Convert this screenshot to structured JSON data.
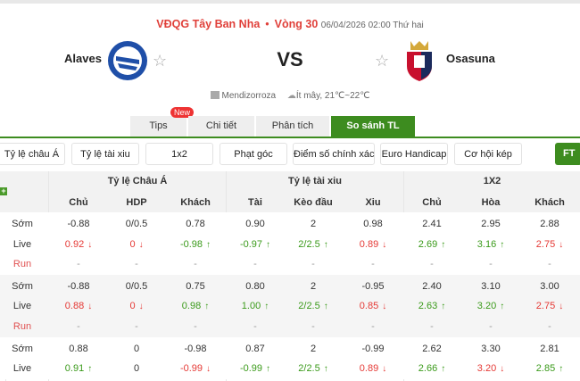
{
  "match": {
    "league": "VĐQG Tây Ban Nha",
    "round": "Vòng 30",
    "datetime": "06/04/2026 02:00 Thứ hai",
    "home": "Alaves",
    "away": "Osasuna",
    "vs": "VS",
    "venue": "Mendizorroza",
    "weather": "Ít mây, 21℃~22℃"
  },
  "tabs": [
    {
      "label": "Tips",
      "badge": "New"
    },
    {
      "label": "Chi tiết"
    },
    {
      "label": "Phân tích"
    },
    {
      "label": "So sánh TL",
      "active": true
    }
  ],
  "filters": [
    "Tỷ lệ châu Á",
    "Tỷ lệ tài xiu",
    "1x2",
    "Phạt góc",
    "Điểm số chính xác",
    "Euro Handicap",
    "Cơ hội kép"
  ],
  "ft_label": "FT",
  "table": {
    "groups": [
      "Tỷ lệ Châu Á",
      "Tỷ lệ tài xiu",
      "1X2"
    ],
    "columns": [
      "Chủ",
      "HDP",
      "Khách",
      "Tài",
      "Kèo đầu",
      "Xiu",
      "Chủ",
      "Hòa",
      "Khách"
    ],
    "colors": {
      "up": "#3a9a1a",
      "down": "#e53935"
    },
    "blocks": [
      {
        "rows": [
          {
            "label": "Sớm",
            "cells": [
              [
                "-0.88",
                ""
              ],
              [
                "0/0.5",
                ""
              ],
              [
                "0.78",
                ""
              ],
              [
                "0.90",
                ""
              ],
              [
                "2",
                ""
              ],
              [
                "0.98",
                ""
              ],
              [
                "2.41",
                ""
              ],
              [
                "2.95",
                ""
              ],
              [
                "2.88",
                ""
              ]
            ]
          },
          {
            "label": "Live",
            "cells": [
              [
                "0.92",
                "down"
              ],
              [
                "0",
                "down"
              ],
              [
                "-0.98",
                "up"
              ],
              [
                "-0.97",
                "up"
              ],
              [
                "2/2.5",
                "up"
              ],
              [
                "0.89",
                "down"
              ],
              [
                "2.69",
                "up"
              ],
              [
                "3.16",
                "up"
              ],
              [
                "2.75",
                "down"
              ]
            ]
          },
          {
            "label": "Run",
            "cells": [
              [
                "-",
                ""
              ],
              [
                "-",
                ""
              ],
              [
                "-",
                ""
              ],
              [
                "-",
                ""
              ],
              [
                "-",
                ""
              ],
              [
                "-",
                ""
              ],
              [
                "-",
                ""
              ],
              [
                "-",
                ""
              ],
              [
                "-",
                ""
              ]
            ]
          }
        ]
      },
      {
        "rows": [
          {
            "label": "Sớm",
            "cells": [
              [
                "-0.88",
                ""
              ],
              [
                "0/0.5",
                ""
              ],
              [
                "0.75",
                ""
              ],
              [
                "0.80",
                ""
              ],
              [
                "2",
                ""
              ],
              [
                "-0.95",
                ""
              ],
              [
                "2.40",
                ""
              ],
              [
                "3.10",
                ""
              ],
              [
                "3.00",
                ""
              ]
            ]
          },
          {
            "label": "Live",
            "cells": [
              [
                "0.88",
                "down"
              ],
              [
                "0",
                "down"
              ],
              [
                "0.98",
                "up"
              ],
              [
                "1.00",
                "up"
              ],
              [
                "2/2.5",
                "up"
              ],
              [
                "0.85",
                "down"
              ],
              [
                "2.63",
                "up"
              ],
              [
                "3.20",
                "up"
              ],
              [
                "2.75",
                "down"
              ]
            ]
          },
          {
            "label": "Run",
            "cells": [
              [
                "-",
                ""
              ],
              [
                "-",
                ""
              ],
              [
                "-",
                ""
              ],
              [
                "-",
                ""
              ],
              [
                "-",
                ""
              ],
              [
                "-",
                ""
              ],
              [
                "-",
                ""
              ],
              [
                "-",
                ""
              ],
              [
                "-",
                ""
              ]
            ]
          }
        ]
      },
      {
        "rows": [
          {
            "label": "Sớm",
            "cells": [
              [
                "0.88",
                ""
              ],
              [
                "0",
                ""
              ],
              [
                "-0.98",
                ""
              ],
              [
                "0.87",
                ""
              ],
              [
                "2",
                ""
              ],
              [
                "-0.99",
                ""
              ],
              [
                "2.62",
                ""
              ],
              [
                "3.30",
                ""
              ],
              [
                "2.81",
                ""
              ]
            ]
          },
          {
            "label": "Live",
            "cells": [
              [
                "0.91",
                "up"
              ],
              [
                "0",
                ""
              ],
              [
                "-0.99",
                "down"
              ],
              [
                "-0.99",
                "up"
              ],
              [
                "2/2.5",
                "up"
              ],
              [
                "0.89",
                "down"
              ],
              [
                "2.66",
                "up"
              ],
              [
                "3.20",
                "down"
              ],
              [
                "2.85",
                "up"
              ]
            ]
          }
        ]
      }
    ]
  }
}
